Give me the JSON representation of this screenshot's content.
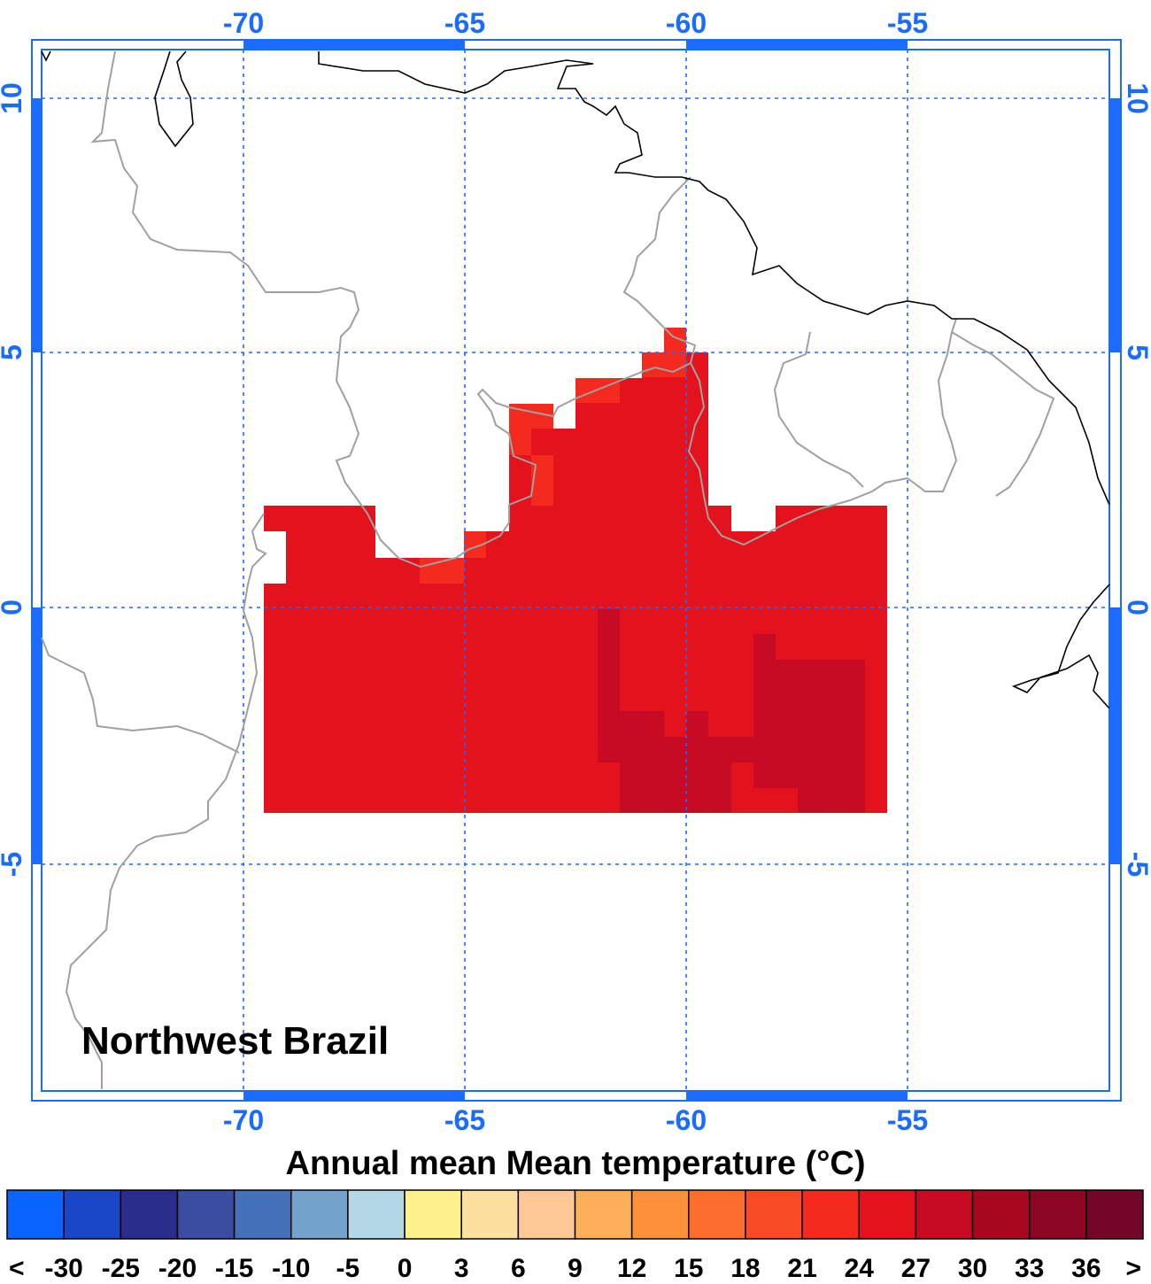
{
  "map": {
    "region_label": "Northwest Brazil",
    "lon_ticks": [
      "-70",
      "-65",
      "-60",
      "-55"
    ],
    "lat_ticks": [
      "10",
      "5",
      "0",
      "-5"
    ],
    "grid_style": "dotted blue lines",
    "colors": {
      "frame": "#1a6bff",
      "country_border": "#a0a0a0",
      "coastline": "#000000"
    }
  },
  "colorbar": {
    "title": "Annual mean Mean temperature (°C)",
    "labels": [
      "<",
      "-30",
      "-25",
      "-20",
      "-15",
      "-10",
      "-5",
      "0",
      "3",
      "6",
      "9",
      "12",
      "15",
      "18",
      "21",
      "24",
      "27",
      "30",
      "33",
      "36",
      ">"
    ],
    "colors": [
      "#0a64ff",
      "#1a46c8",
      "#2b2d8c",
      "#3a4da0",
      "#4471b8",
      "#73a2cc",
      "#b4d8e6",
      "#fef08c",
      "#fde0a0",
      "#fdc896",
      "#fdaf5a",
      "#fd913a",
      "#fb6e2d",
      "#f84a25",
      "#f52a1f",
      "#e3121c",
      "#c80b24",
      "#a8081f",
      "#8c0624",
      "#730628"
    ]
  },
  "data_field": {
    "variable": "Annual mean Mean temperature",
    "unit": "°C",
    "values_shown": "mostly 24–27 °C, some cells 27–30 °C and 21–24 °C",
    "colors": {
      "c21_24": "#f52a1f",
      "c24_27": "#e3121c",
      "c27_30": "#c80b24"
    }
  }
}
